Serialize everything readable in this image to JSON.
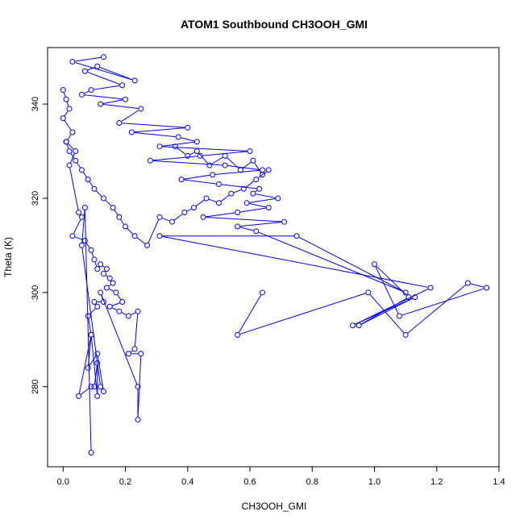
{
  "chart_data": {
    "type": "line",
    "title": "ATOM1 Southbound CH3OOH_GMI",
    "xlabel": "CH3OOH_GMI",
    "ylabel": "Theta (K)",
    "xlim": [
      -0.05,
      1.4
    ],
    "ylim": [
      263,
      352
    ],
    "xticks": [
      "0.0",
      "0.2",
      "0.4",
      "0.6",
      "0.8",
      "1.0",
      "1.2",
      "1.4"
    ],
    "yticks": [
      "280",
      "300",
      "320",
      "340"
    ],
    "grid": false,
    "color": "#0000ff",
    "marker": "open-circle",
    "series": [
      {
        "x": [
          0.13,
          0.03,
          0.23,
          0.11,
          0.07,
          0.19,
          0.09,
          0.06,
          0.2,
          0.12,
          0.25,
          0.18,
          0.4,
          0.22,
          0.37,
          0.43,
          0.31,
          0.6,
          0.44,
          0.28,
          0.52,
          0.64,
          0.48,
          0.38,
          0.5,
          0.63,
          0.61,
          0.69,
          0.59,
          0.66,
          0.56,
          0.45,
          0.71,
          0.56,
          0.62,
          1.1,
          0.75,
          0.31,
          1.18,
          0.93,
          1.13,
          0.95,
          1.11,
          1.0,
          1.08,
          1.36,
          1.3,
          1.1,
          0.98,
          0.56,
          0.64
        ],
        "y": [
          350,
          349,
          345,
          348,
          347,
          344,
          343,
          342,
          341,
          340,
          339,
          336,
          335,
          334,
          333,
          332,
          331,
          330,
          329,
          328,
          327,
          326,
          325,
          324,
          323,
          322,
          321,
          320,
          319,
          318,
          317,
          316,
          315,
          314,
          313,
          300,
          312,
          312,
          301,
          293,
          299,
          293,
          299,
          306,
          295,
          301,
          302,
          291,
          300,
          291,
          300
        ]
      },
      {
        "x": [
          0.0,
          0.01,
          0.02,
          0.0,
          0.03,
          0.01,
          0.04,
          0.02,
          0.05,
          0.06,
          0.03,
          0.07,
          0.09,
          0.1,
          0.11,
          0.12,
          0.14,
          0.13,
          0.15,
          0.16,
          0.14,
          0.17,
          0.19,
          0.15,
          0.18,
          0.21,
          0.24,
          0.23,
          0.21,
          0.25,
          0.24,
          0.24,
          0.12,
          0.13,
          0.1,
          0.11,
          0.08,
          0.09,
          0.05,
          0.09,
          0.1,
          0.11,
          0.11,
          0.09,
          0.08,
          0.11,
          0.13,
          0.12,
          0.06,
          0.07,
          0.09
        ],
        "y": [
          343,
          341,
          339,
          337,
          334,
          332,
          330,
          327,
          317,
          316,
          312,
          311,
          309,
          307,
          305,
          306,
          305,
          304,
          303,
          302,
          301,
          300,
          298,
          297,
          296,
          295,
          296,
          288,
          287,
          287,
          273,
          280,
          300,
          298,
          298,
          297,
          295,
          291,
          278,
          280,
          280,
          285,
          278,
          291,
          284,
          287,
          279,
          280,
          310,
          318,
          266
        ]
      },
      {
        "x": [
          0.01,
          0.02,
          0.04,
          0.06,
          0.08,
          0.1,
          0.13,
          0.16,
          0.18,
          0.2,
          0.23,
          0.27,
          0.31,
          0.35,
          0.39,
          0.42,
          0.46,
          0.5,
          0.54,
          0.58,
          0.62,
          0.66,
          0.64,
          0.61,
          0.57,
          0.52,
          0.47,
          0.43,
          0.4,
          0.36
        ],
        "y": [
          332,
          330,
          328,
          326,
          324,
          322,
          320,
          318,
          316,
          314,
          312,
          310,
          316,
          315,
          317,
          318,
          320,
          319,
          321,
          322,
          324,
          326,
          325,
          328,
          326,
          329,
          327,
          330,
          329,
          331
        ]
      }
    ]
  }
}
